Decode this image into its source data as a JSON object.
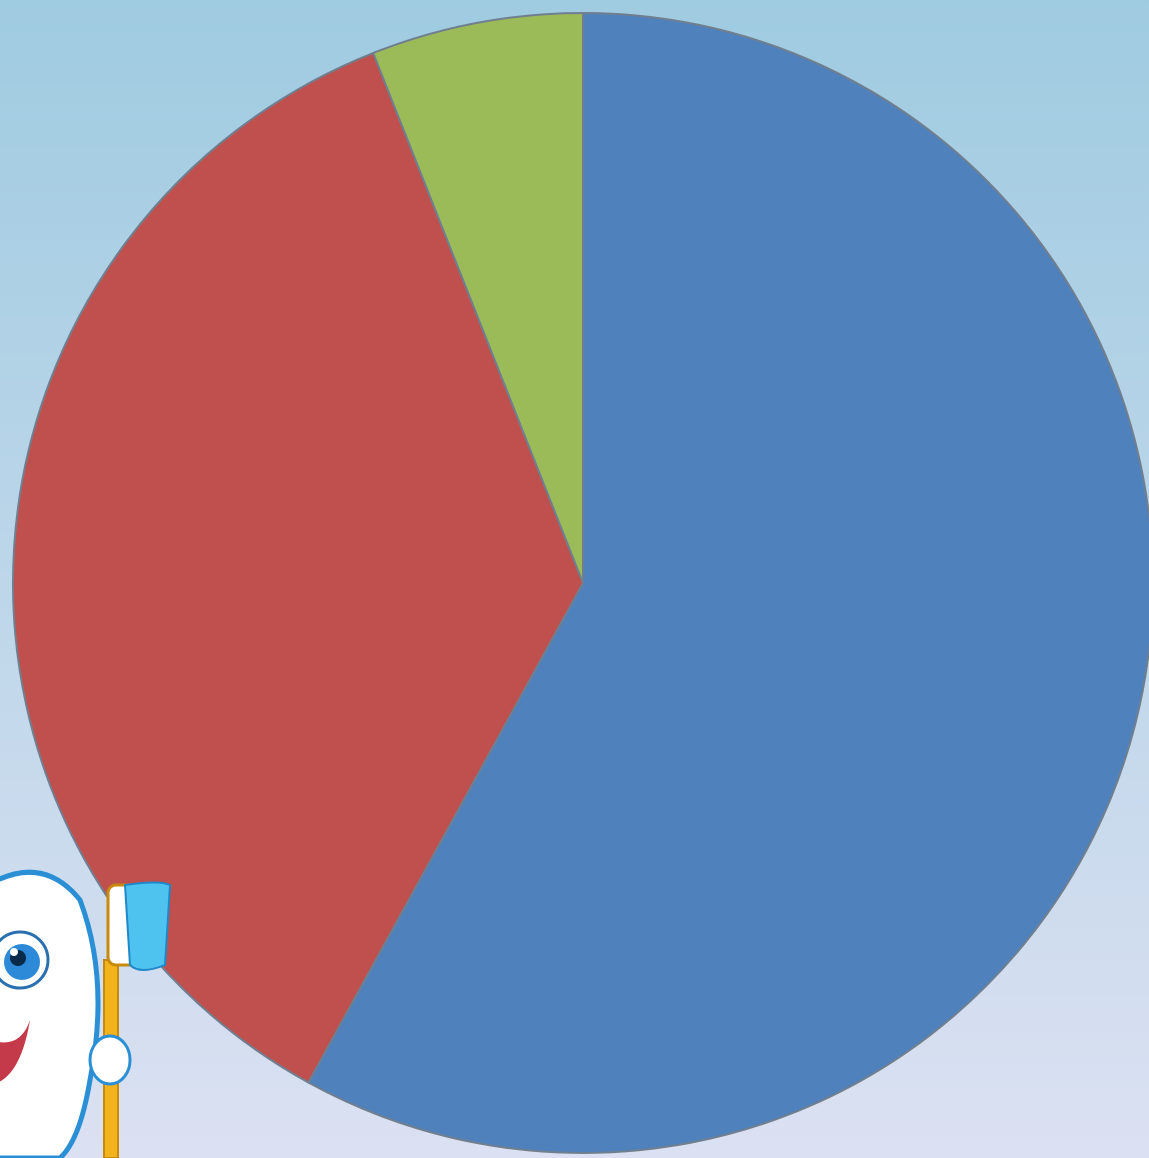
{
  "chart_data": {
    "type": "pie",
    "values": [
      58,
      36,
      6
    ],
    "colors": [
      "#4f81bd",
      "#c0504d",
      "#9bbb59"
    ],
    "start_angle": 0,
    "direction": "clockwise"
  }
}
